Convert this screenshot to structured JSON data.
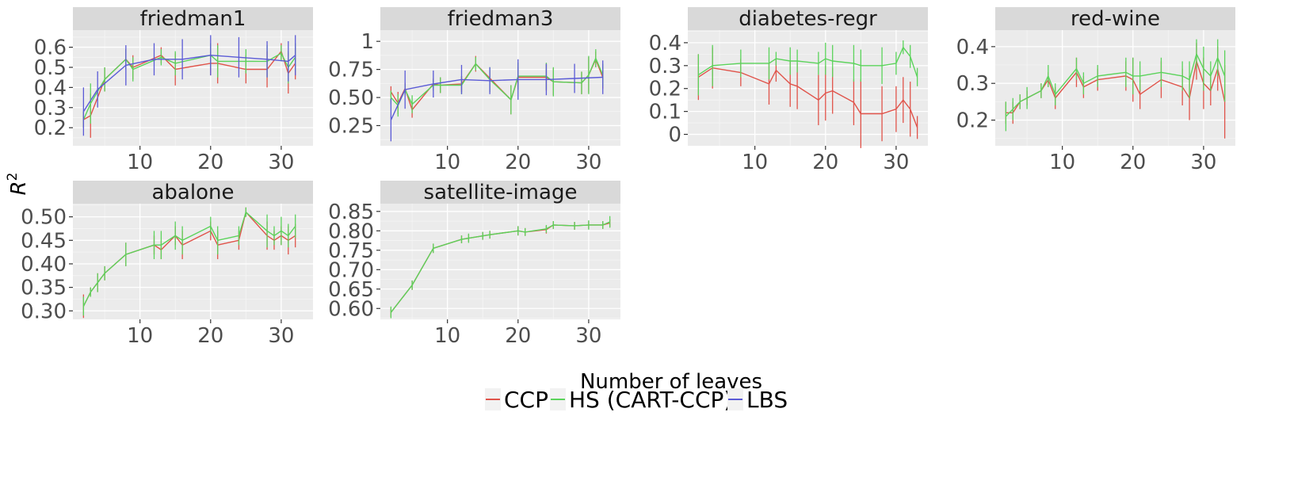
{
  "chart_data": {
    "type": "line",
    "xlabel": "Number of leaves",
    "ylabel": "R",
    "ylabel_superscript": "2",
    "grid": true,
    "legend_placement": "bottom",
    "xticks": [
      10,
      20,
      30
    ],
    "xlim": [
      0.5,
      34.5
    ],
    "legend": [
      {
        "name": "CCP",
        "color": "#e0534a"
      },
      {
        "name": "HS (CART-CCP)",
        "color": "#5bd35b"
      },
      {
        "name": "LBS",
        "color": "#5a5ad6"
      }
    ],
    "panels": [
      {
        "title": "friedman1",
        "ylim": [
          0.11,
          0.685
        ],
        "yticks": [
          {
            "v": 0.2,
            "label": "0.2"
          },
          {
            "v": 0.3,
            "label": "0.3"
          },
          {
            "v": 0.4,
            "label": "0.4"
          },
          {
            "v": 0.5,
            "label": "0.5"
          },
          {
            "v": 0.6,
            "label": "0.6"
          }
        ],
        "series": [
          {
            "name": "CCP",
            "x": [
              2,
              3,
              5,
              8,
              9,
              13,
              15,
              20,
              21,
              25,
              28,
              30,
              31,
              32
            ],
            "y": [
              0.24,
              0.26,
              0.44,
              0.54,
              0.5,
              0.56,
              0.49,
              0.52,
              0.52,
              0.49,
              0.49,
              0.58,
              0.47,
              0.52
            ],
            "err": [
              0.04,
              0.11,
              0.06,
              0.05,
              0.06,
              0.04,
              0.08,
              0.06,
              0.1,
              0.07,
              0.09,
              0.04,
              0.1,
              0.08
            ]
          },
          {
            "name": "HS (CART-CCP)",
            "x": [
              2,
              3,
              5,
              8,
              9,
              13,
              15,
              20,
              21,
              25,
              28,
              30,
              31,
              32
            ],
            "y": [
              0.24,
              0.32,
              0.44,
              0.54,
              0.49,
              0.55,
              0.52,
              0.56,
              0.53,
              0.53,
              0.53,
              0.57,
              0.5,
              0.55
            ],
            "err": [
              0.04,
              0.1,
              0.06,
              0.05,
              0.06,
              0.04,
              0.06,
              0.06,
              0.08,
              0.06,
              0.08,
              0.04,
              0.08,
              0.07
            ]
          },
          {
            "name": "LBS",
            "x": [
              2,
              4,
              8,
              12,
              16,
              20,
              24,
              28,
              31,
              32
            ],
            "y": [
              0.28,
              0.39,
              0.51,
              0.54,
              0.54,
              0.56,
              0.55,
              0.54,
              0.53,
              0.56
            ],
            "err": [
              0.12,
              0.09,
              0.1,
              0.08,
              0.1,
              0.1,
              0.1,
              0.09,
              0.1,
              0.1
            ]
          }
        ]
      },
      {
        "title": "friedman3",
        "ylim": [
          0.07,
          1.1
        ],
        "yticks": [
          {
            "v": 0.25,
            "label": "0.25"
          },
          {
            "v": 0.5,
            "label": "0.50"
          },
          {
            "v": 0.75,
            "label": "0.75"
          },
          {
            "v": 1.0,
            "label": "1"
          }
        ],
        "series": [
          {
            "name": "CCP",
            "x": [
              2,
              3,
              4,
              5,
              8,
              9,
              12,
              14,
              19,
              20,
              24,
              25,
              29,
              30,
              31,
              32
            ],
            "y": [
              0.55,
              0.45,
              0.58,
              0.39,
              0.62,
              0.61,
              0.62,
              0.8,
              0.48,
              0.68,
              0.68,
              0.64,
              0.63,
              0.7,
              0.84,
              0.68
            ],
            "err": [
              0.05,
              0.1,
              0.05,
              0.07,
              0.05,
              0.07,
              0.07,
              0.07,
              0.13,
              0.09,
              0.12,
              0.12,
              0.1,
              0.16,
              0.07,
              0.1
            ]
          },
          {
            "name": "HS (CART-CCP)",
            "x": [
              2,
              3,
              4,
              5,
              8,
              9,
              12,
              14,
              16,
              19,
              20,
              24,
              25,
              29,
              30,
              31,
              32
            ],
            "y": [
              0.5,
              0.43,
              0.57,
              0.44,
              0.61,
              0.61,
              0.61,
              0.8,
              0.66,
              0.48,
              0.69,
              0.69,
              0.64,
              0.63,
              0.7,
              0.85,
              0.7
            ],
            "err": [
              0.06,
              0.1,
              0.05,
              0.08,
              0.05,
              0.07,
              0.08,
              0.06,
              0.11,
              0.13,
              0.12,
              0.12,
              0.13,
              0.1,
              0.17,
              0.08,
              0.1
            ]
          },
          {
            "name": "LBS",
            "x": [
              2,
              4,
              8,
              12,
              16,
              20,
              24,
              28,
              32
            ],
            "y": [
              0.3,
              0.57,
              0.62,
              0.66,
              0.65,
              0.66,
              0.66,
              0.67,
              0.68
            ],
            "err": [
              0.19,
              0.17,
              0.12,
              0.13,
              0.12,
              0.18,
              0.14,
              0.13,
              0.15
            ]
          }
        ]
      },
      {
        "title": "diabetes-regr",
        "ylim": [
          -0.05,
          0.455
        ],
        "yticks": [
          {
            "v": 0.0,
            "label": "0"
          },
          {
            "v": 0.1,
            "label": "0.1"
          },
          {
            "v": 0.2,
            "label": "0.2"
          },
          {
            "v": 0.3,
            "label": "0.3"
          },
          {
            "v": 0.4,
            "label": "0.4"
          }
        ],
        "series": [
          {
            "name": "CCP",
            "x": [
              2,
              4,
              8,
              12,
              13,
              15,
              16,
              19,
              20,
              21,
              24,
              25,
              28,
              30,
              31,
              32,
              33
            ],
            "y": [
              0.25,
              0.29,
              0.27,
              0.22,
              0.28,
              0.22,
              0.21,
              0.15,
              0.18,
              0.19,
              0.14,
              0.09,
              0.09,
              0.11,
              0.15,
              0.11,
              0.03
            ],
            "err": [
              0.1,
              0.09,
              0.06,
              0.09,
              0.05,
              0.1,
              0.1,
              0.11,
              0.12,
              0.1,
              0.1,
              0.15,
              0.12,
              0.1,
              0.1,
              0.12,
              0.05
            ]
          },
          {
            "name": "HS (CART-CCP)",
            "x": [
              2,
              4,
              8,
              12,
              13,
              15,
              16,
              19,
              20,
              21,
              24,
              25,
              28,
              30,
              31,
              32,
              33
            ],
            "y": [
              0.26,
              0.3,
              0.31,
              0.31,
              0.33,
              0.32,
              0.32,
              0.31,
              0.33,
              0.32,
              0.31,
              0.3,
              0.3,
              0.31,
              0.38,
              0.34,
              0.25
            ],
            "err": [
              0.09,
              0.09,
              0.06,
              0.07,
              0.03,
              0.06,
              0.05,
              0.05,
              0.07,
              0.07,
              0.08,
              0.07,
              0.08,
              0.05,
              0.03,
              0.05,
              0.04
            ]
          }
        ]
      },
      {
        "title": "red-wine",
        "ylim": [
          0.13,
          0.445
        ],
        "yticks": [
          {
            "v": 0.2,
            "label": "0.2"
          },
          {
            "v": 0.3,
            "label": "0.3"
          },
          {
            "v": 0.4,
            "label": "0.4"
          }
        ],
        "series": [
          {
            "name": "CCP",
            "x": [
              2,
              3,
              4,
              5,
              7,
              8,
              9,
              12,
              13,
              15,
              19,
              20,
              21,
              24,
              27,
              28,
              29,
              30,
              31,
              32,
              33
            ],
            "y": [
              0.22,
              0.22,
              0.25,
              0.26,
              0.28,
              0.31,
              0.26,
              0.33,
              0.29,
              0.31,
              0.32,
              0.31,
              0.27,
              0.31,
              0.29,
              0.26,
              0.36,
              0.3,
              0.28,
              0.34,
              0.25
            ],
            "err": [
              0.03,
              0.03,
              0.02,
              0.02,
              0.02,
              0.02,
              0.03,
              0.04,
              0.03,
              0.03,
              0.04,
              0.06,
              0.04,
              0.05,
              0.05,
              0.06,
              0.05,
              0.07,
              0.04,
              0.06,
              0.1
            ]
          },
          {
            "name": "HS (CART-CCP)",
            "x": [
              2,
              3,
              4,
              5,
              7,
              8,
              9,
              12,
              13,
              15,
              19,
              20,
              21,
              24,
              27,
              28,
              29,
              30,
              31,
              32,
              33
            ],
            "y": [
              0.21,
              0.23,
              0.25,
              0.26,
              0.28,
              0.32,
              0.27,
              0.34,
              0.3,
              0.32,
              0.33,
              0.32,
              0.32,
              0.33,
              0.32,
              0.31,
              0.38,
              0.34,
              0.32,
              0.37,
              0.32
            ],
            "err": [
              0.04,
              0.03,
              0.02,
              0.03,
              0.02,
              0.03,
              0.03,
              0.03,
              0.03,
              0.03,
              0.04,
              0.05,
              0.04,
              0.04,
              0.04,
              0.05,
              0.04,
              0.06,
              0.04,
              0.05,
              0.07
            ]
          }
        ]
      },
      {
        "title": "abalone",
        "ylim": [
          0.282,
          0.528
        ],
        "yticks": [
          {
            "v": 0.3,
            "label": "0.30"
          },
          {
            "v": 0.35,
            "label": "0.35"
          },
          {
            "v": 0.4,
            "label": "0.40"
          },
          {
            "v": 0.45,
            "label": "0.45"
          },
          {
            "v": 0.5,
            "label": "0.50"
          }
        ],
        "series": [
          {
            "name": "CCP",
            "x": [
              2,
              3,
              4,
              5,
              8,
              12,
              13,
              15,
              16,
              20,
              21,
              24,
              25,
              28,
              29,
              30,
              31,
              32
            ],
            "y": [
              0.31,
              0.34,
              0.36,
              0.38,
              0.42,
              0.44,
              0.43,
              0.46,
              0.44,
              0.47,
              0.44,
              0.45,
              0.51,
              0.46,
              0.45,
              0.46,
              0.45,
              0.46
            ],
            "err": [
              0.025,
              0.01,
              0.02,
              0.015,
              0.025,
              0.02,
              0.02,
              0.02,
              0.03,
              0.02,
              0.03,
              0.02,
              0.01,
              0.03,
              0.02,
              0.02,
              0.03,
              0.025
            ]
          },
          {
            "name": "HS (CART-CCP)",
            "x": [
              2,
              3,
              4,
              5,
              8,
              12,
              13,
              15,
              16,
              20,
              21,
              24,
              25,
              28,
              29,
              30,
              31,
              32
            ],
            "y": [
              0.31,
              0.34,
              0.36,
              0.38,
              0.42,
              0.44,
              0.44,
              0.46,
              0.45,
              0.48,
              0.45,
              0.46,
              0.51,
              0.47,
              0.46,
              0.47,
              0.46,
              0.48
            ],
            "err": [
              0.02,
              0.01,
              0.02,
              0.015,
              0.025,
              0.03,
              0.03,
              0.03,
              0.03,
              0.02,
              0.03,
              0.02,
              0.01,
              0.035,
              0.02,
              0.03,
              0.025,
              0.025
            ]
          }
        ]
      },
      {
        "title": "satellite-image",
        "ylim": [
          0.572,
          0.87
        ],
        "yticks": [
          {
            "v": 0.6,
            "label": "0.60"
          },
          {
            "v": 0.65,
            "label": "0.65"
          },
          {
            "v": 0.7,
            "label": "0.70"
          },
          {
            "v": 0.75,
            "label": "0.75"
          },
          {
            "v": 0.8,
            "label": "0.80"
          },
          {
            "v": 0.85,
            "label": "0.85"
          }
        ],
        "series": [
          {
            "name": "CCP",
            "x": [
              2,
              5,
              8,
              12,
              13,
              15,
              16,
              20,
              21,
              24,
              25,
              28,
              30,
              32,
              33
            ],
            "y": [
              0.59,
              0.66,
              0.755,
              0.778,
              0.781,
              0.787,
              0.79,
              0.8,
              0.797,
              0.803,
              0.815,
              0.813,
              0.815,
              0.815,
              0.82
            ],
            "err": [
              0.012,
              0.012,
              0.012,
              0.01,
              0.01,
              0.01,
              0.01,
              0.012,
              0.01,
              0.01,
              0.01,
              0.01,
              0.01,
              0.01,
              0.01
            ]
          },
          {
            "name": "HS (CART-CCP)",
            "x": [
              2,
              5,
              8,
              12,
              13,
              15,
              16,
              20,
              21,
              24,
              25,
              28,
              30,
              32,
              33
            ],
            "y": [
              0.59,
              0.66,
              0.755,
              0.778,
              0.781,
              0.787,
              0.79,
              0.8,
              0.797,
              0.805,
              0.815,
              0.813,
              0.815,
              0.815,
              0.823
            ],
            "err": [
              0.015,
              0.012,
              0.012,
              0.01,
              0.012,
              0.01,
              0.01,
              0.012,
              0.01,
              0.01,
              0.01,
              0.01,
              0.012,
              0.01,
              0.015
            ]
          }
        ]
      }
    ]
  }
}
